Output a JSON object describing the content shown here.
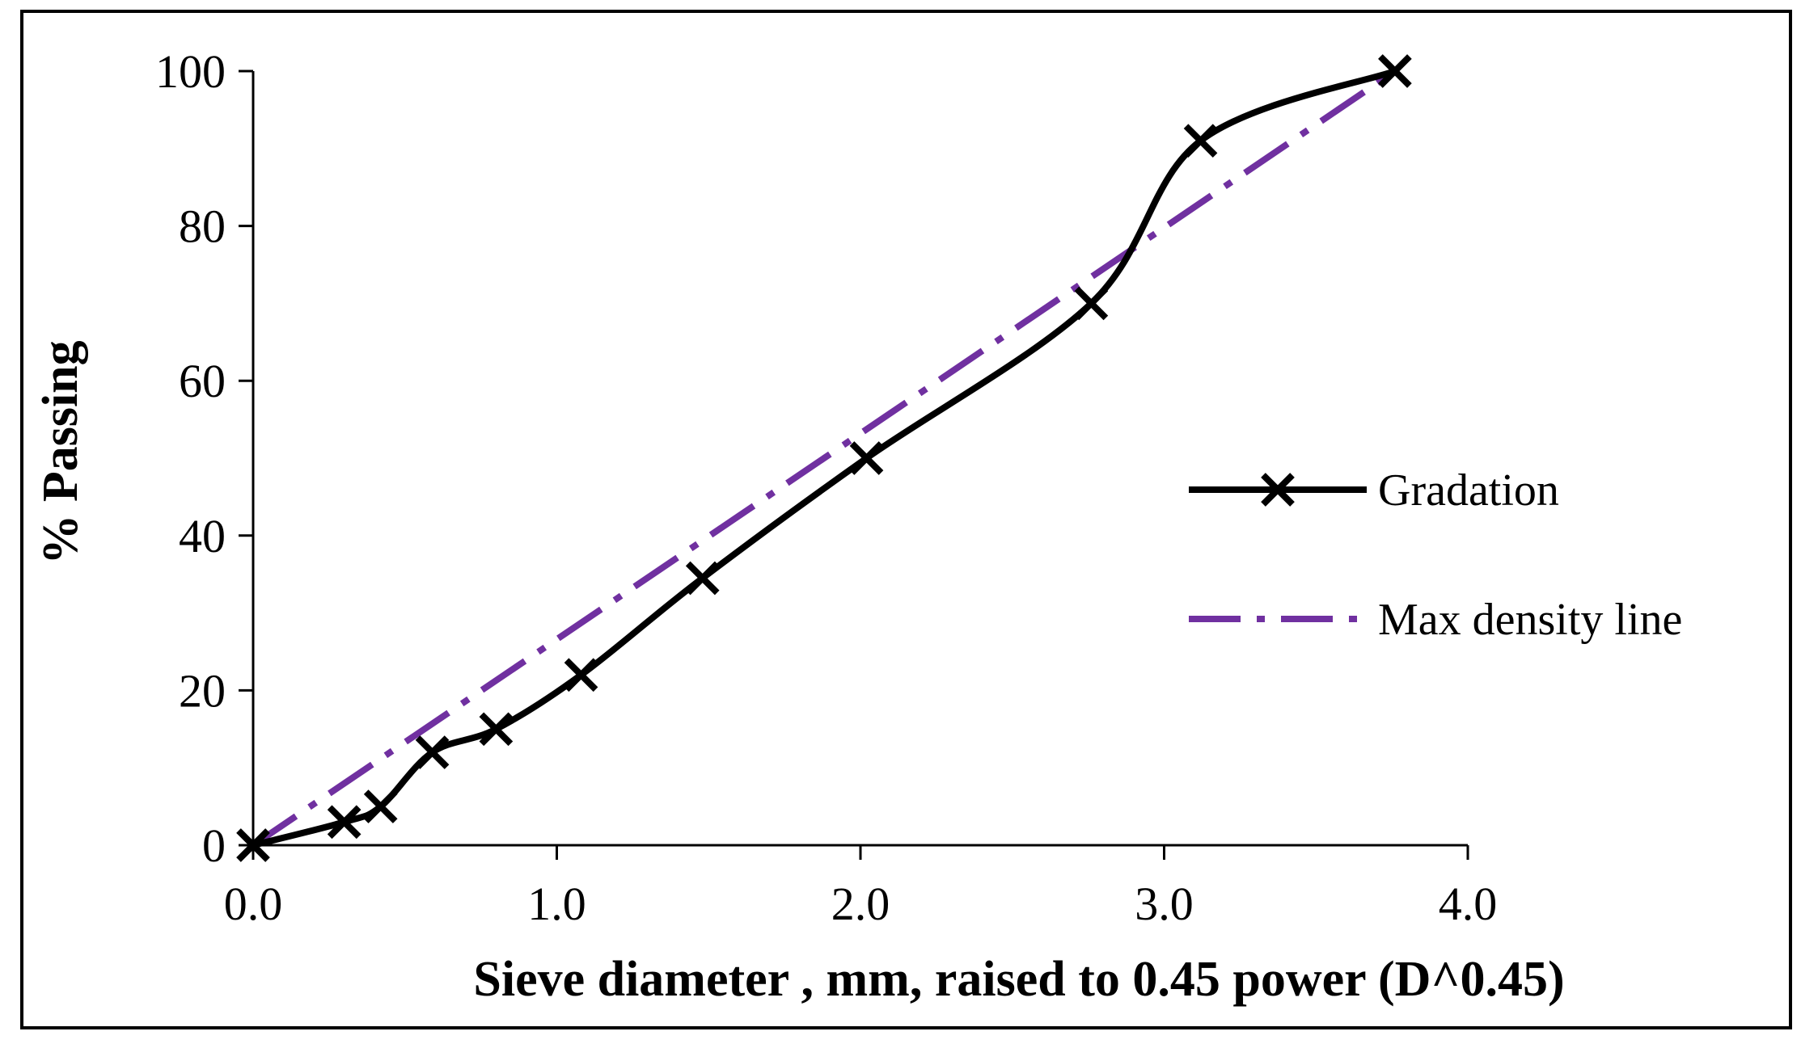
{
  "chart_data": {
    "type": "line",
    "title": "",
    "xlabel": "Sieve diameter , mm, raised to 0.45 power  (D^0.45)",
    "ylabel": "% Passing",
    "xlim": [
      0,
      4
    ],
    "ylim": [
      0,
      100
    ],
    "x_ticks": [
      {
        "value": 0,
        "label": "0.0"
      },
      {
        "value": 1,
        "label": "1.0"
      },
      {
        "value": 2,
        "label": "2.0"
      },
      {
        "value": 3,
        "label": "3.0"
      },
      {
        "value": 4,
        "label": "4.0"
      }
    ],
    "y_ticks": [
      {
        "value": 0,
        "label": "0"
      },
      {
        "value": 20,
        "label": "20"
      },
      {
        "value": 40,
        "label": "40"
      },
      {
        "value": 60,
        "label": "60"
      },
      {
        "value": 80,
        "label": "80"
      },
      {
        "value": 100,
        "label": "100"
      }
    ],
    "grid": false,
    "legend_position": "right",
    "series": [
      {
        "name": "Gradation",
        "style": "solid-with-x-markers",
        "color": "#000000",
        "x": [
          0.0,
          0.3,
          0.42,
          0.59,
          0.8,
          1.08,
          1.48,
          2.02,
          2.76,
          3.12,
          3.76
        ],
        "y": [
          0,
          3,
          5,
          12,
          15,
          22,
          34.5,
          50,
          70,
          91,
          100
        ]
      },
      {
        "name": "Max density line",
        "style": "dash-dot",
        "color": "#7030a0",
        "x": [
          0.0,
          3.76
        ],
        "y": [
          0,
          100
        ]
      }
    ]
  }
}
